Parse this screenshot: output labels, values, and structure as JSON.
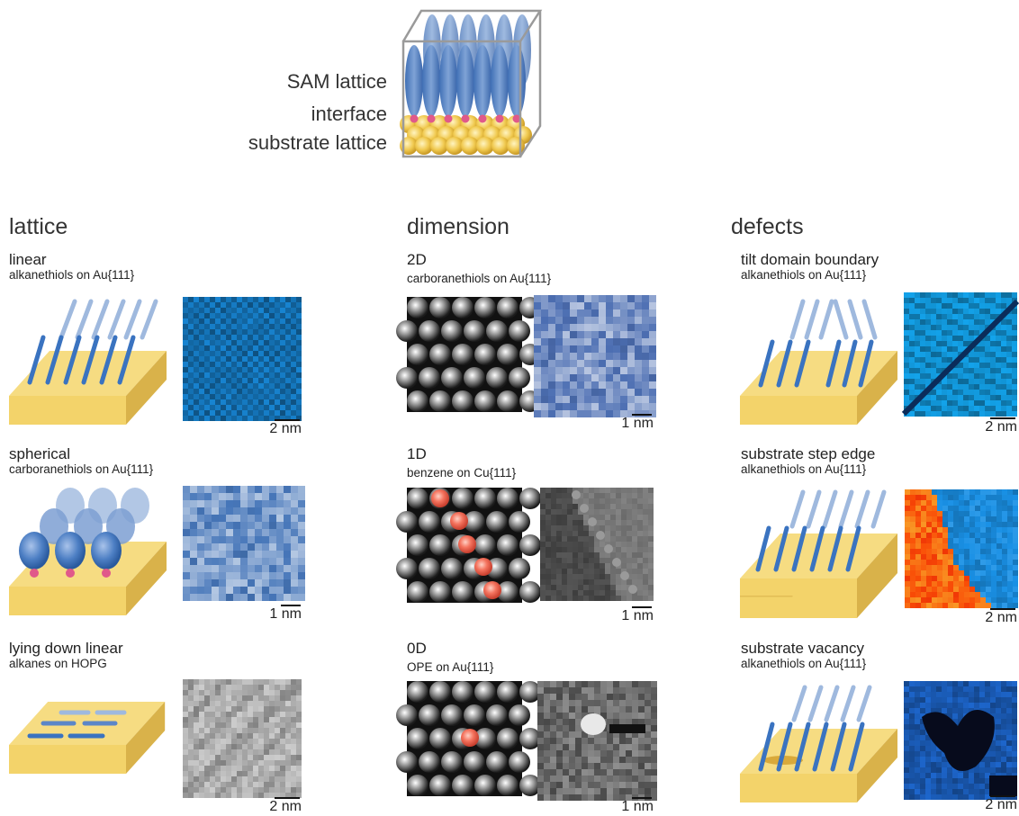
{
  "header": {
    "labels": [
      "SAM lattice",
      "interface",
      "substrate lattice"
    ]
  },
  "columns": [
    {
      "title": "lattice",
      "items": [
        {
          "title": "linear",
          "subtitle": "alkanethiols on Au{111}",
          "scale": "2 nm",
          "image": "stm-blue-dense"
        },
        {
          "title": "spherical",
          "subtitle": "carboranethiols on Au{111}",
          "scale": "1 nm",
          "image": "stm-blue-light"
        },
        {
          "title": "lying down linear",
          "subtitle": "alkanes on HOPG",
          "scale": "2 nm",
          "image": "stm-gray-stripes"
        }
      ]
    },
    {
      "title": "dimension",
      "items": [
        {
          "title": "2D",
          "subtitle": "carboranethiols on Au{111}",
          "scale": "1 nm",
          "image": "stm-blue-light"
        },
        {
          "title": "1D",
          "subtitle": "benzene on Cu{111}",
          "scale": "1 nm",
          "image": "stm-gray-step"
        },
        {
          "title": "0D",
          "subtitle": "OPE on Au{111}",
          "scale": "1 nm",
          "image": "stm-gray-bright-spot"
        }
      ]
    },
    {
      "title": "defects",
      "items": [
        {
          "title": "tilt domain boundary",
          "subtitle": "alkanethiols on Au{111}",
          "scale": "2 nm",
          "image": "stm-blue-boundary"
        },
        {
          "title": "substrate step edge",
          "subtitle": "alkanethiols on Au{111}",
          "scale": "2 nm",
          "image": "stm-orange-blue-step"
        },
        {
          "title": "substrate vacancy",
          "subtitle": "alkanethiols on Au{111}",
          "scale": "2 nm",
          "image": "stm-blue-vacancy"
        }
      ]
    }
  ],
  "colors": {
    "gold": "#f3d36a",
    "gold_dark": "#d9b24a",
    "molecule_blue": "#3a73c0",
    "molecule_light": "#9fb9de",
    "highlight_red": "#ef6a5a",
    "anchor_pink": "#e0598a"
  }
}
